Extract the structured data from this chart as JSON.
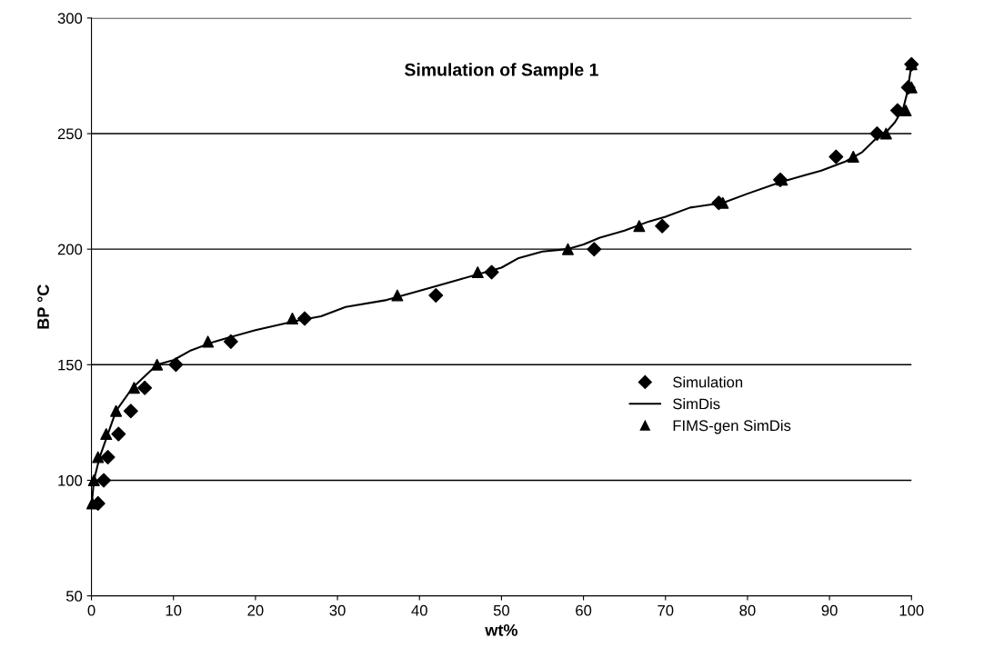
{
  "chart_data": {
    "type": "scatter",
    "title": "Simulation of Sample 1",
    "xlabel": "wt%",
    "ylabel": "BP °C",
    "xlim": [
      0,
      100
    ],
    "xticks": [
      0,
      10,
      20,
      30,
      40,
      50,
      60,
      70,
      80,
      90,
      100
    ],
    "ylim": [
      50,
      300
    ],
    "yticks": [
      50,
      100,
      150,
      200,
      250,
      300
    ],
    "grid": "y",
    "legend": "right",
    "series": [
      {
        "name": "Simulation",
        "marker": "diamond",
        "color": "#000000",
        "x": [
          0.8,
          1.5,
          2.0,
          3.3,
          4.8,
          6.5,
          10.3,
          17,
          26,
          42,
          48.8,
          61.3,
          69.6,
          76.5,
          84,
          90.8,
          95.8,
          98.3,
          99.6,
          100
        ],
        "values": [
          90,
          100,
          110,
          120,
          130,
          140,
          150,
          160,
          170,
          180,
          190,
          200,
          210,
          220,
          230,
          240,
          250,
          260,
          270,
          280
        ]
      },
      {
        "name": "SimDis",
        "type": "line",
        "marker": "none",
        "line_style": "solid",
        "color": "#000000",
        "x": [
          0,
          0.3,
          1,
          2,
          3,
          5,
          8,
          10,
          12,
          15,
          20,
          25,
          28,
          31,
          36,
          40,
          45,
          50,
          52,
          55,
          58,
          60,
          62,
          65,
          68,
          70,
          73,
          75,
          77,
          80,
          84,
          87,
          89,
          92,
          94,
          96,
          97,
          98,
          99,
          99.5,
          100
        ],
        "values": [
          88,
          100,
          110,
          120,
          130,
          140,
          150,
          152,
          156,
          160,
          165,
          169,
          171,
          175,
          178,
          182,
          187,
          192,
          196,
          199,
          200,
          202,
          205,
          208,
          212,
          214,
          218,
          219,
          220,
          224,
          229,
          232,
          234,
          238,
          242,
          249,
          251,
          255,
          261,
          268,
          280
        ]
      },
      {
        "name": "FIMS-gen SimDis",
        "marker": "triangle",
        "color": "#000000",
        "x": [
          0.1,
          0.3,
          0.8,
          1.8,
          3.0,
          5.2,
          8.0,
          14.2,
          24.5,
          37.3,
          47.1,
          58.1,
          66.8,
          77,
          84.2,
          92.9,
          96.9,
          99.3,
          100,
          100
        ],
        "values": [
          90,
          100,
          110,
          120,
          130,
          140,
          150,
          160,
          170,
          180,
          190,
          200,
          210,
          220,
          230,
          240,
          250,
          260,
          270,
          280
        ]
      }
    ]
  }
}
